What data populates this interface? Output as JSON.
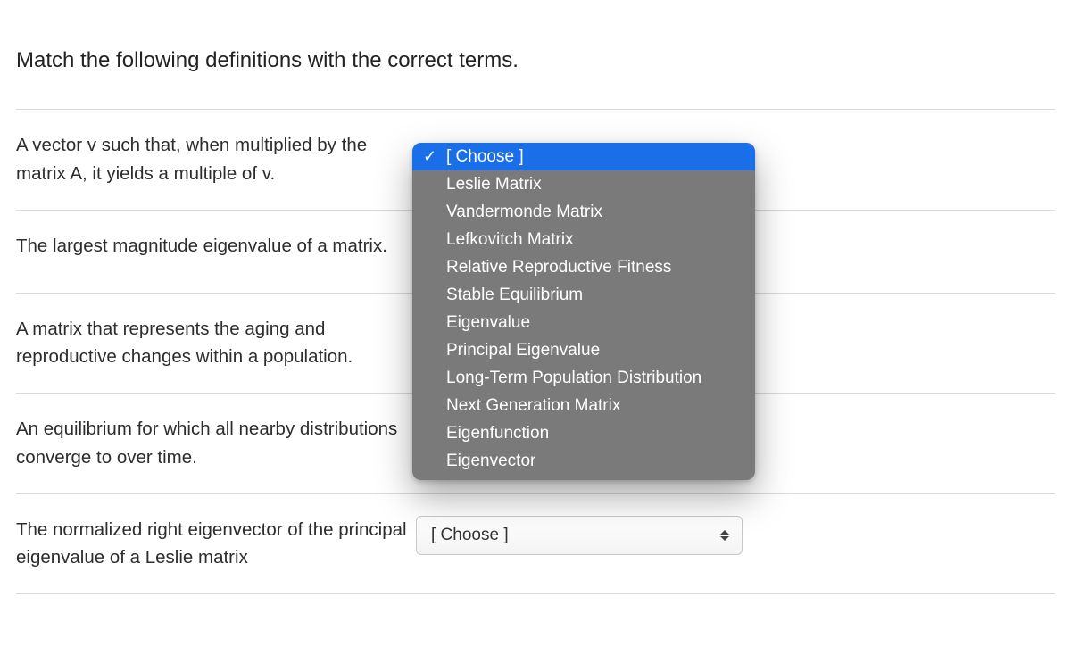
{
  "question": {
    "title": "Match the following definitions with the correct terms."
  },
  "rows": [
    {
      "definition": "A vector v such that, when multiplied by the matrix A, it yields a multiple of v.",
      "selected": "[ Choose ]",
      "open": true
    },
    {
      "definition": "The largest magnitude eigenvalue of a matrix.",
      "selected": "[ Choose ]",
      "open": false
    },
    {
      "definition": "A matrix that represents the aging and reproductive changes within a population.",
      "selected": "[ Choose ]",
      "open": false
    },
    {
      "definition": "An equilibrium for which all nearby distributions converge to over time.",
      "selected": "[ Choose ]",
      "open": false
    },
    {
      "definition": "The normalized right eigenvector of the principal eigenvalue of a Leslie matrix",
      "selected": "[ Choose ]",
      "open": false
    }
  ],
  "dropdown": {
    "selected_index": 0,
    "options": [
      "[ Choose ]",
      "Leslie Matrix",
      "Vandermonde Matrix",
      "Lefkovitch Matrix",
      "Relative Reproductive Fitness",
      "Stable Equilibrium",
      "Eigenvalue",
      "Principal Eigenvalue",
      "Long-Term Population Distribution",
      "Next Generation Matrix",
      "Eigenfunction",
      "Eigenvector"
    ]
  },
  "style": {
    "page_bg": "#ffffff",
    "text_color": "#2d2d2d",
    "divider_color": "#d9d9d9",
    "select_border": "#c9c9c9",
    "select_bg_top": "#ffffff",
    "select_bg_bottom": "#f3f3f3",
    "dropdown_bg": "#7a7a7a",
    "dropdown_highlight": "#1a6fe8",
    "dropdown_text": "#ffffff",
    "title_fontsize": 24,
    "body_fontsize": 20.5,
    "option_fontsize": 19
  }
}
